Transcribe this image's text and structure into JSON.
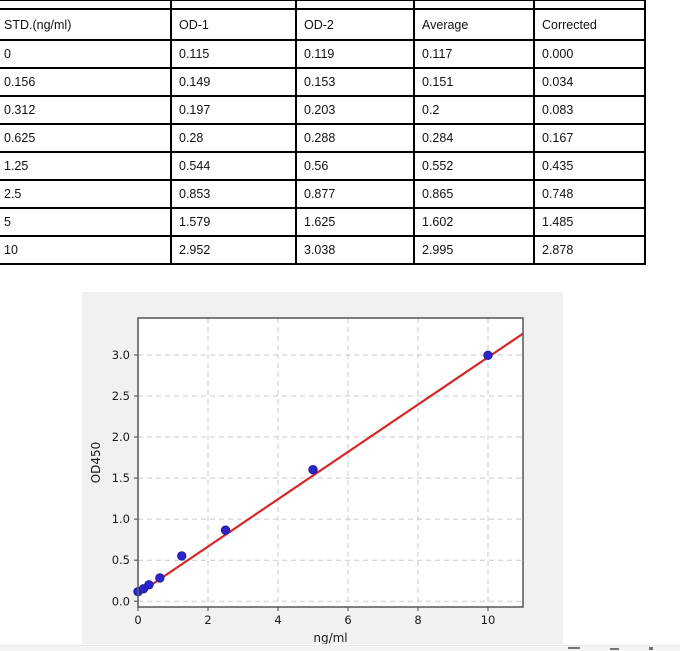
{
  "table": {
    "columns": [
      "STD.(ng/ml)",
      "OD-1",
      "OD-2",
      "Average",
      "Corrected"
    ],
    "rows": [
      [
        "0",
        "0.115",
        "0.119",
        "0.117",
        "0.000"
      ],
      [
        "0.156",
        "0.149",
        "0.153",
        "0.151",
        "0.034"
      ],
      [
        "0.312",
        "0.197",
        "0.203",
        "0.2",
        "0.083"
      ],
      [
        "0.625",
        "0.28",
        "0.288",
        "0.284",
        "0.167"
      ],
      [
        "1.25",
        "0.544",
        "0.56",
        "0.552",
        "0.435"
      ],
      [
        "2.5",
        "0.853",
        "0.877",
        "0.865",
        "0.748"
      ],
      [
        "5",
        "1.579",
        "1.625",
        "1.602",
        "1.485"
      ],
      [
        "10",
        "2.952",
        "3.038",
        "2.995",
        "2.878"
      ]
    ]
  },
  "chart_data": {
    "type": "scatter",
    "title": "",
    "xlabel": "ng/ml",
    "ylabel": "OD450",
    "x": [
      0,
      0.156,
      0.312,
      0.625,
      1.25,
      2.5,
      5,
      10
    ],
    "y": [
      0.117,
      0.151,
      0.2,
      0.284,
      0.552,
      0.865,
      1.602,
      2.995
    ],
    "fit_line": {
      "x": [
        0,
        11
      ],
      "y": [
        0.09,
        3.26
      ]
    },
    "xlim": [
      0,
      11
    ],
    "ylim": [
      -0.07,
      3.45
    ],
    "xticks": [
      0,
      2,
      4,
      6,
      8,
      10
    ],
    "yticks": [
      0.0,
      0.5,
      1.0,
      1.5,
      2.0,
      2.5,
      3.0
    ],
    "grid": true,
    "legend": "none",
    "colors": {
      "point": "#2a25c8",
      "point_edge": "#1a1a9e",
      "fit_line": "#d92525",
      "figure_bg": "#f1f1f1",
      "plot_bg": "#ffffff",
      "grid": "#c9c9c9",
      "frame": "#5f5f5f",
      "tick_text": "#1a1a1a"
    }
  }
}
